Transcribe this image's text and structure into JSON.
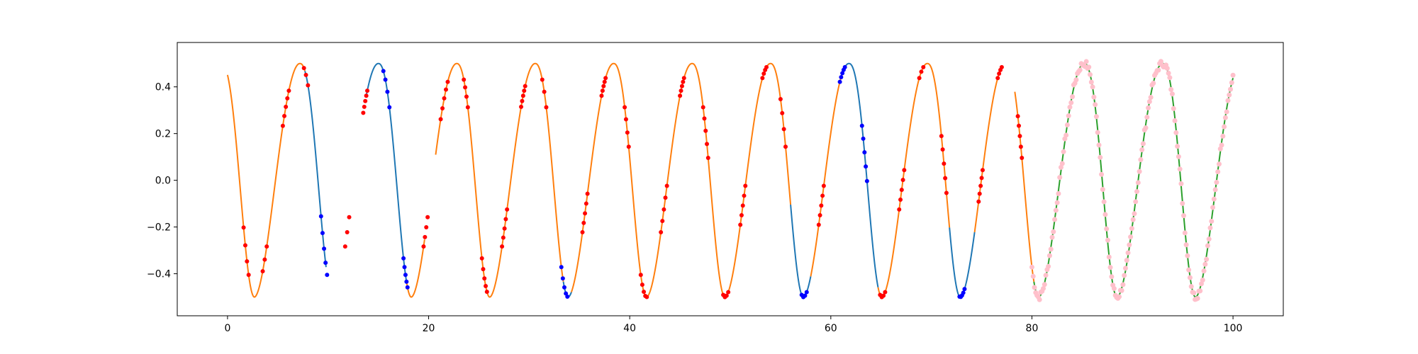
{
  "chart_data": {
    "type": "line",
    "title": "",
    "xlabel": "",
    "ylabel": "",
    "xlim": [
      -5,
      105
    ],
    "ylim": [
      -0.58,
      0.59
    ],
    "x_ticks": [
      0,
      20,
      40,
      60,
      80,
      100
    ],
    "y_ticks": [
      -0.4,
      -0.2,
      0.0,
      0.2,
      0.4
    ],
    "x_tick_labels": [
      "0",
      "20",
      "40",
      "60",
      "80",
      "100"
    ],
    "y_tick_labels": [
      "−0.4",
      "−0.2",
      "0.0",
      "0.2",
      "0.4"
    ],
    "grid": false,
    "legend": "none",
    "colors": {
      "orange": "#ff7f0e",
      "blue": "#1f77b4",
      "green": "#2ca02c",
      "red": "#ff0000",
      "dark_blue": "#0000ff",
      "pink": "#ffc0cb"
    },
    "signal_model": {
      "period": 7.8,
      "amplitude": 0.5
    },
    "line_segments": [
      {
        "color_key": "orange",
        "x_range": [
          0.0,
          7.7
        ]
      },
      {
        "color_key": "blue",
        "x_range": [
          7.7,
          9.8
        ]
      },
      {
        "color_key": "blue",
        "x_range": [
          13.8,
          17.8
        ]
      },
      {
        "color_key": "orange",
        "x_range": [
          17.8,
          19.6
        ]
      },
      {
        "color_key": "orange",
        "x_range": [
          20.7,
          33.4
        ]
      },
      {
        "color_key": "blue",
        "x_range": [
          33.4,
          34.2
        ]
      },
      {
        "color_key": "orange",
        "x_range": [
          34.2,
          56.0
        ]
      },
      {
        "color_key": "blue",
        "x_range": [
          56.0,
          58.0
        ]
      },
      {
        "color_key": "orange",
        "x_range": [
          58.0,
          61.2
        ]
      },
      {
        "color_key": "blue",
        "x_range": [
          61.2,
          64.7
        ]
      },
      {
        "color_key": "orange",
        "x_range": [
          64.7,
          71.8
        ]
      },
      {
        "color_key": "blue",
        "x_range": [
          71.8,
          74.3
        ]
      },
      {
        "color_key": "orange",
        "x_range": [
          74.3,
          77.0
        ]
      },
      {
        "color_key": "orange",
        "x_range": [
          78.3,
          80.2
        ]
      },
      {
        "color_key": "green",
        "x_range": [
          80.2,
          100.0
        ]
      }
    ],
    "marker_groups": [
      {
        "color_key": "red",
        "x_start": 1.6,
        "x_end": 2.1,
        "count": 4
      },
      {
        "color_key": "red",
        "x_start": 3.5,
        "x_end": 3.9,
        "count": 3
      },
      {
        "color_key": "red",
        "x_start": 5.5,
        "x_end": 6.1,
        "count": 5
      },
      {
        "color_key": "red",
        "x_start": 7.6,
        "x_end": 8.0,
        "count": 3
      },
      {
        "color_key": "dark_blue",
        "x_start": 9.3,
        "x_end": 9.9,
        "count": 5
      },
      {
        "color_key": "red",
        "x_start": 11.7,
        "x_end": 12.1,
        "count": 3
      },
      {
        "color_key": "red",
        "x_start": 13.5,
        "x_end": 13.9,
        "count": 5
      },
      {
        "color_key": "dark_blue",
        "x_start": 15.5,
        "x_end": 16.1,
        "count": 4
      },
      {
        "color_key": "dark_blue",
        "x_start": 17.5,
        "x_end": 17.9,
        "count": 5
      },
      {
        "color_key": "red",
        "x_start": 19.5,
        "x_end": 19.9,
        "count": 4
      },
      {
        "color_key": "red",
        "x_start": 21.2,
        "x_end": 21.9,
        "count": 5
      },
      {
        "color_key": "red",
        "x_start": 23.5,
        "x_end": 23.9,
        "count": 4
      },
      {
        "color_key": "red",
        "x_start": 25.3,
        "x_end": 25.8,
        "count": 5
      },
      {
        "color_key": "red",
        "x_start": 27.3,
        "x_end": 27.8,
        "count": 5
      },
      {
        "color_key": "red",
        "x_start": 29.2,
        "x_end": 29.6,
        "count": 5
      },
      {
        "color_key": "red",
        "x_start": 31.3,
        "x_end": 31.7,
        "count": 3
      },
      {
        "color_key": "dark_blue",
        "x_start": 33.2,
        "x_end": 33.8,
        "count": 5
      },
      {
        "color_key": "red",
        "x_start": 35.3,
        "x_end": 35.8,
        "count": 5
      },
      {
        "color_key": "red",
        "x_start": 37.2,
        "x_end": 37.6,
        "count": 5
      },
      {
        "color_key": "red",
        "x_start": 39.5,
        "x_end": 39.9,
        "count": 4
      },
      {
        "color_key": "red",
        "x_start": 41.1,
        "x_end": 41.7,
        "count": 5
      },
      {
        "color_key": "red",
        "x_start": 43.1,
        "x_end": 43.7,
        "count": 5
      },
      {
        "color_key": "red",
        "x_start": 45.0,
        "x_end": 45.4,
        "count": 5
      },
      {
        "color_key": "red",
        "x_start": 47.3,
        "x_end": 47.8,
        "count": 5
      },
      {
        "color_key": "red",
        "x_start": 49.3,
        "x_end": 49.8,
        "count": 4
      },
      {
        "color_key": "red",
        "x_start": 51.0,
        "x_end": 51.5,
        "count": 5
      },
      {
        "color_key": "red",
        "x_start": 53.2,
        "x_end": 53.6,
        "count": 4
      },
      {
        "color_key": "red",
        "x_start": 55.0,
        "x_end": 55.5,
        "count": 4
      },
      {
        "color_key": "dark_blue",
        "x_start": 57.1,
        "x_end": 57.6,
        "count": 4
      },
      {
        "color_key": "red",
        "x_start": 58.8,
        "x_end": 59.3,
        "count": 5
      },
      {
        "color_key": "dark_blue",
        "x_start": 60.9,
        "x_end": 61.4,
        "count": 5
      },
      {
        "color_key": "dark_blue",
        "x_start": 63.1,
        "x_end": 63.6,
        "count": 5
      },
      {
        "color_key": "red",
        "x_start": 64.9,
        "x_end": 65.4,
        "count": 4
      },
      {
        "color_key": "red",
        "x_start": 66.8,
        "x_end": 67.3,
        "count": 5
      },
      {
        "color_key": "red",
        "x_start": 68.8,
        "x_end": 69.2,
        "count": 3
      },
      {
        "color_key": "red",
        "x_start": 71.0,
        "x_end": 71.5,
        "count": 5
      },
      {
        "color_key": "dark_blue",
        "x_start": 72.8,
        "x_end": 73.3,
        "count": 5
      },
      {
        "color_key": "red",
        "x_start": 74.7,
        "x_end": 75.1,
        "count": 5
      },
      {
        "color_key": "red",
        "x_start": 76.6,
        "x_end": 77.0,
        "count": 4
      },
      {
        "color_key": "red",
        "x_start": 78.6,
        "x_end": 79.0,
        "count": 5
      },
      {
        "color_key": "pink",
        "x_start": 80.0,
        "x_end": 100.0,
        "count": 160
      }
    ]
  }
}
